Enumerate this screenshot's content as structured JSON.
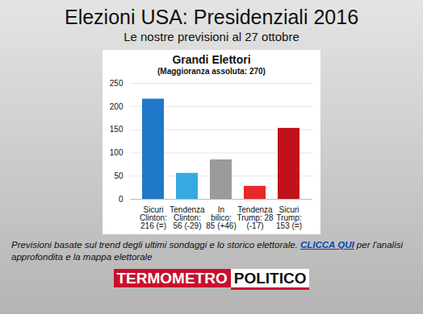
{
  "title": "Elezioni USA: Presidenziali 2016",
  "subtitle": "Le nostre previsioni al 27 ottobre",
  "chart_data": {
    "type": "bar",
    "title": "Grandi Elettori",
    "subtitle": "(Maggioranza assoluta: 270)",
    "categories": [
      "Sicuri Clinton: 216 (=)",
      "Tendenza Clinton: 56 (-29)",
      "In bilico: 85 (+46)",
      "Tendenza Trump: 28 (-17)",
      "Sicuri Trump: 153 (=)"
    ],
    "values": [
      216,
      56,
      85,
      28,
      153
    ],
    "colors": [
      "#1f78c8",
      "#36a9e1",
      "#9a9a9a",
      "#e8282b",
      "#c0111b"
    ],
    "ylim": [
      0,
      250
    ],
    "yticks": [
      0,
      50,
      100,
      150,
      200,
      250
    ],
    "grid": true
  },
  "caption": {
    "text": "Previsioni basate sul trend degli ultimi sondaggi e lo storico elettorale.",
    "link": "CLICCA QUI",
    "after": "per l'analisi approfondita e la mappa elettorale"
  },
  "logo": [
    "TERMOMETRO",
    "POLITICO"
  ]
}
